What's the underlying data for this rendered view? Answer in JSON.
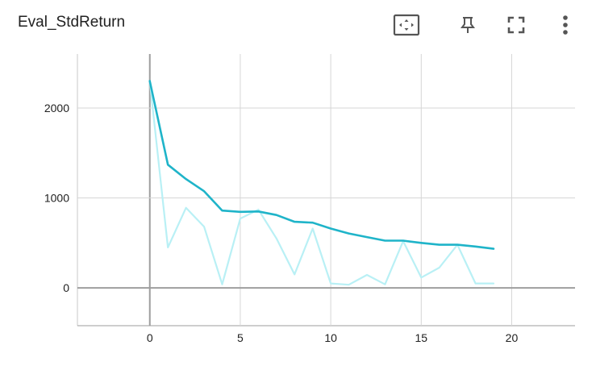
{
  "card": {
    "title": "Eval_StdReturn",
    "toolbar": [
      {
        "name": "fit-to-data",
        "icon": "fit-domain-icon"
      },
      {
        "name": "pin",
        "icon": "pin-icon"
      },
      {
        "name": "fullscreen",
        "icon": "fullscreen-icon"
      },
      {
        "name": "more",
        "icon": "more-vert-icon"
      }
    ]
  },
  "chart_data": {
    "type": "line",
    "title": "Eval_StdReturn",
    "xlabel": "",
    "ylabel": "",
    "xlim": [
      -4,
      23.5
    ],
    "ylim": [
      -420,
      2600
    ],
    "xticks": [
      0,
      5,
      10,
      15,
      20
    ],
    "yticks": [
      0,
      1000,
      2000
    ],
    "grid": true,
    "series": [
      {
        "role": "raw",
        "color": "#b9f0f5",
        "x": [
          0,
          1,
          2,
          3,
          4,
          5,
          6,
          7,
          8,
          9,
          10,
          11,
          12,
          13,
          14,
          15,
          16,
          17,
          18,
          19
        ],
        "values": [
          2300,
          450,
          890,
          680,
          40,
          770,
          870,
          550,
          150,
          660,
          50,
          35,
          145,
          40,
          520,
          115,
          225,
          480,
          50,
          50
        ]
      },
      {
        "role": "smoothed",
        "color": "#1fb4c9",
        "x": [
          0,
          1,
          2,
          3,
          4,
          5,
          6,
          7,
          8,
          9,
          10,
          11,
          12,
          13,
          14,
          15,
          16,
          17,
          18,
          19
        ],
        "values": [
          2300,
          1370,
          1210,
          1075,
          860,
          845,
          850,
          810,
          735,
          725,
          660,
          605,
          565,
          525,
          525,
          500,
          480,
          480,
          460,
          435
        ]
      }
    ]
  }
}
